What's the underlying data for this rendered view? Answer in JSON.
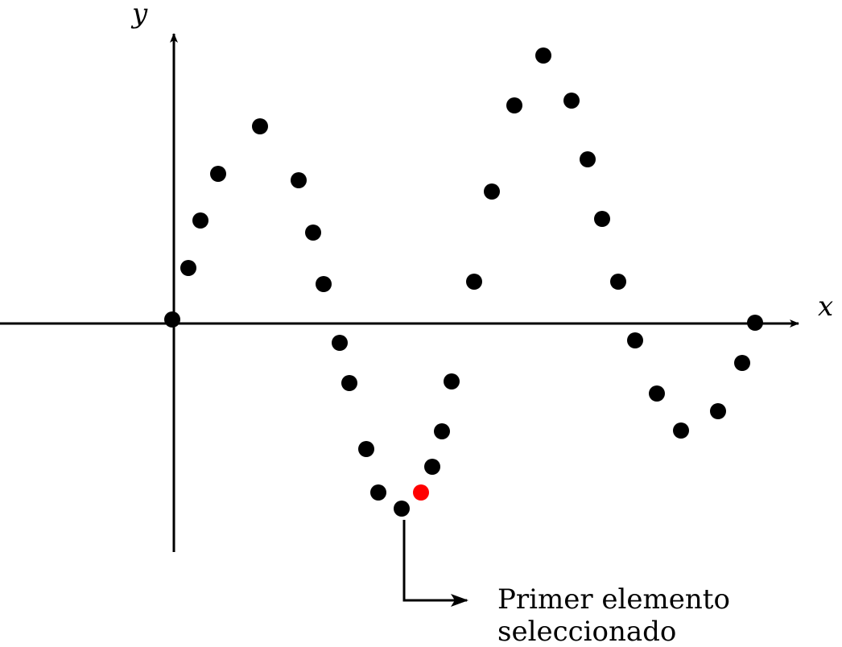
{
  "chart_data": {
    "type": "scatter",
    "xlabel": "x",
    "ylabel": "y",
    "xlim": [
      -214,
      790
    ],
    "ylim": [
      -285,
      360
    ],
    "grid": false,
    "legend": "none",
    "points": [
      {
        "x": 0,
        "y": 0
      },
      {
        "x": 20,
        "y": 64
      },
      {
        "x": 35,
        "y": 123
      },
      {
        "x": 57,
        "y": 181
      },
      {
        "x": 109,
        "y": 240
      },
      {
        "x": 157,
        "y": 173
      },
      {
        "x": 175,
        "y": 108
      },
      {
        "x": 188,
        "y": 44
      },
      {
        "x": 208,
        "y": -29
      },
      {
        "x": 220,
        "y": -79
      },
      {
        "x": 241,
        "y": -161
      },
      {
        "x": 256,
        "y": -215
      },
      {
        "x": 285,
        "y": -235
      },
      {
        "x": 309,
        "y": -215
      },
      {
        "x": 323,
        "y": -183
      },
      {
        "x": 335,
        "y": -139
      },
      {
        "x": 347,
        "y": -77
      },
      {
        "x": 375,
        "y": 47
      },
      {
        "x": 397,
        "y": 159
      },
      {
        "x": 425,
        "y": 266
      },
      {
        "x": 461,
        "y": 328
      },
      {
        "x": 496,
        "y": 272
      },
      {
        "x": 516,
        "y": 199
      },
      {
        "x": 534,
        "y": 125
      },
      {
        "x": 554,
        "y": 47
      },
      {
        "x": 575,
        "y": -26
      },
      {
        "x": 602,
        "y": -92
      },
      {
        "x": 632,
        "y": -138
      },
      {
        "x": 678,
        "y": -114
      },
      {
        "x": 708,
        "y": -54
      },
      {
        "x": 724,
        "y": -4
      }
    ],
    "highlight_index": 13,
    "colors": {
      "points": "#000000",
      "highlight": "#ff0000",
      "axes": "#000000"
    },
    "annotation": {
      "text_line1": "Primer elemento",
      "text_line2": "seleccionado"
    }
  }
}
